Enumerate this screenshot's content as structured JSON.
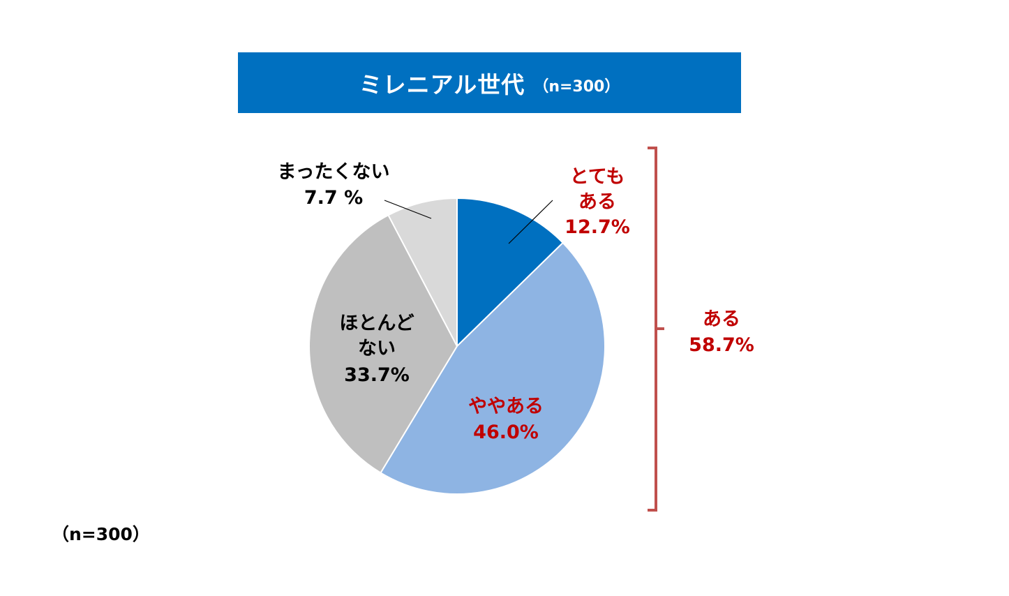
{
  "title": {
    "main": "ミレニアル世代",
    "sub": "（n=300）"
  },
  "footnote": "（n=300）",
  "chart_data": {
    "type": "pie",
    "slices": [
      {
        "name": "とてもある",
        "label_lines": [
          "とても",
          "ある"
        ],
        "value": 12.7,
        "value_label": "12.7%",
        "color": "#0070c0",
        "label_color": "#c00000"
      },
      {
        "name": "ややある",
        "label_lines": [
          "ややある"
        ],
        "value": 46.0,
        "value_label": "46.0%",
        "color": "#8eb4e3",
        "label_color": "#c00000"
      },
      {
        "name": "ほとんどない",
        "label_lines": [
          "ほとんど",
          "ない"
        ],
        "value": 33.7,
        "value_label": "33.7%",
        "color": "#bfbfbf",
        "label_color": "#000000"
      },
      {
        "name": "まったくない",
        "label_lines": [
          "まったくない"
        ],
        "value": 7.7,
        "value_label": "7.7 %",
        "color": "#d9d9d9",
        "label_color": "#000000"
      }
    ],
    "bracket": {
      "label_lines": [
        "ある"
      ],
      "value_label": "58.7%",
      "color": "#c0504d",
      "text_color": "#c00000"
    }
  }
}
